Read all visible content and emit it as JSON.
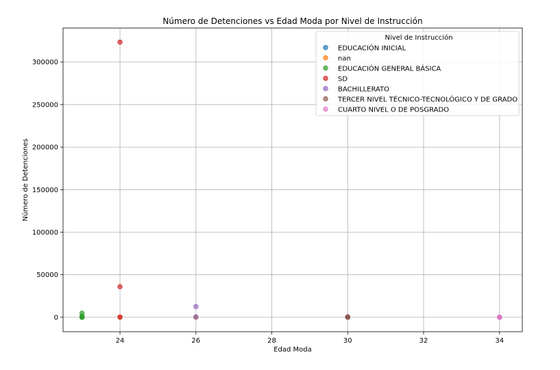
{
  "chart_data": {
    "type": "scatter",
    "title": "Número de Detenciones vs Edad Moda por Nivel de Instrucción",
    "xlabel": "Edad Moda",
    "ylabel": "Número de Detenciones",
    "xlim": [
      22.5,
      34.6
    ],
    "ylim": [
      -17000,
      340000
    ],
    "xticks": [
      24,
      26,
      28,
      30,
      32,
      34
    ],
    "yticks": [
      0,
      50000,
      100000,
      150000,
      200000,
      250000,
      300000
    ],
    "grid": true,
    "legend": {
      "title": "Nivel de Instrucción",
      "placement": "top-right"
    },
    "series": [
      {
        "name": "EDUCACIÓN INICIAL",
        "color": "#1f77b4",
        "points": [
          [
            23,
            50
          ],
          [
            24,
            20
          ],
          [
            26,
            30
          ],
          [
            30,
            15
          ],
          [
            34,
            5
          ]
        ]
      },
      {
        "name": "nan",
        "color": "#ff7f0e",
        "points": [
          [
            23,
            100
          ],
          [
            24,
            80
          ],
          [
            26,
            60
          ],
          [
            30,
            40
          ]
        ]
      },
      {
        "name": "EDUCACIÓN GENERAL BÁSICA",
        "color": "#2ca02c",
        "points": [
          [
            23,
            4800
          ],
          [
            23,
            1200
          ],
          [
            23,
            300
          ],
          [
            23,
            0
          ]
        ]
      },
      {
        "name": "SD",
        "color": "#d62728",
        "points": [
          [
            24,
            323500
          ],
          [
            24,
            36000
          ],
          [
            24,
            200
          ]
        ]
      },
      {
        "name": "BACHILLERATO",
        "color": "#9467bd",
        "points": [
          [
            26,
            12500
          ],
          [
            26,
            400
          ],
          [
            30,
            150
          ],
          [
            34,
            50
          ]
        ]
      },
      {
        "name": "TERCER NIVEL TÉCNICO-TECNOLÓGICO Y DE GRADO",
        "color": "#8c564b",
        "points": [
          [
            30,
            500
          ],
          [
            30,
            100
          ]
        ]
      },
      {
        "name": "CUARTO NIVEL O DE POSGRADO",
        "color": "#e377c2",
        "points": [
          [
            34,
            30
          ],
          [
            34,
            10
          ]
        ]
      }
    ]
  }
}
